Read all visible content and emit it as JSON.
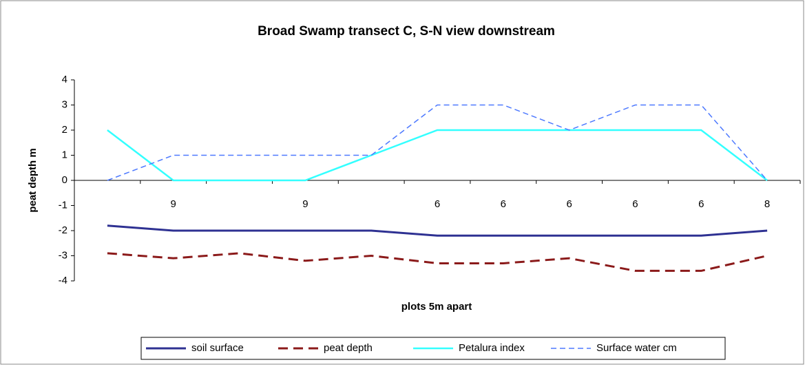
{
  "chart_data": {
    "type": "line",
    "title": "Broad Swamp transect C, S-N view downstream",
    "ylabel": "peat depth m",
    "xlabel": "plots 5m apart",
    "categories": [
      null,
      "9",
      null,
      "9",
      null,
      "6",
      "6",
      "6",
      "6",
      "6",
      "8"
    ],
    "ylim": [
      -4,
      4
    ],
    "yticks": [
      -4,
      -3,
      -2,
      -1,
      0,
      1,
      2,
      3,
      4
    ],
    "legend": "bottom",
    "series": [
      {
        "name": "soil surface",
        "color": "#2e3192",
        "dashed": false,
        "values": [
          -1.8,
          -2,
          -2,
          -2,
          -2,
          -2.2,
          -2.2,
          -2.2,
          -2.2,
          -2.2,
          -2
        ]
      },
      {
        "name": "peat depth",
        "color": "#8b1a1a",
        "dashed": true,
        "values": [
          -2.9,
          -3.1,
          -2.9,
          -3.2,
          -3,
          -3.3,
          -3.3,
          -3.1,
          -3.6,
          -3.6,
          -3
        ]
      },
      {
        "name": "Petalura index",
        "color": "#33ffff",
        "dashed": false,
        "values": [
          2,
          0,
          0,
          0,
          1,
          2,
          2,
          2,
          2,
          2,
          0
        ]
      },
      {
        "name": "Surface water cm",
        "color": "#4d79ff",
        "dashed": true,
        "values": [
          0,
          1,
          1,
          1,
          1,
          3,
          3,
          2,
          3,
          3,
          0
        ]
      }
    ]
  }
}
